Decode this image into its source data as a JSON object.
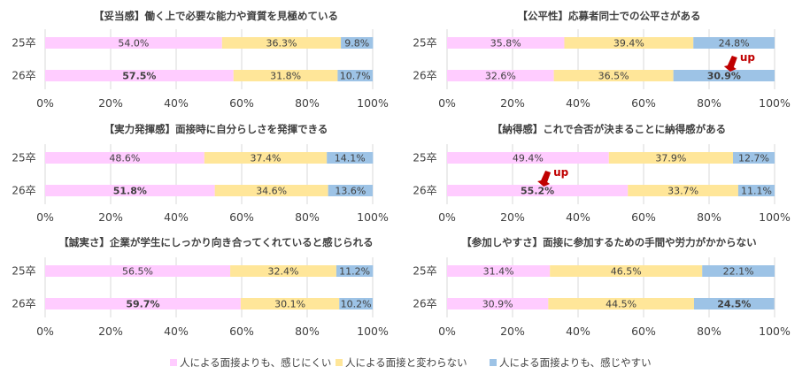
{
  "colors": {
    "less": "#ffccff",
    "same": "#ffe699",
    "more": "#9dc3e6",
    "highlight": "#c00000",
    "grid": "#d9d9d9"
  },
  "legend": [
    {
      "key": "less",
      "label": "人による面接よりも、感じにくい"
    },
    {
      "key": "same",
      "label": "人による面接と変わらない"
    },
    {
      "key": "more",
      "label": "人による面接よりも、感じやすい"
    }
  ],
  "chart_data": [
    {
      "type": "bar",
      "orientation": "horizontal-stacked",
      "title": "【妥当感】働く上で必要な能力や資質を見極めている",
      "categories": [
        "25卒",
        "26卒"
      ],
      "series": [
        {
          "name": "人による面接よりも、感じにくい",
          "values": [
            54.0,
            57.5
          ],
          "labels": [
            "54.0%",
            "57.5%"
          ]
        },
        {
          "name": "人による面接と変わらない",
          "values": [
            36.3,
            31.8
          ],
          "labels": [
            "36.3%",
            "31.8%"
          ]
        },
        {
          "name": "人による面接よりも、感じやすい",
          "values": [
            9.8,
            10.7
          ],
          "labels": [
            "9.8%",
            "10.7%"
          ]
        }
      ],
      "xlim": [
        0,
        100
      ],
      "xticks": [
        "0%",
        "20%",
        "40%",
        "60%",
        "80%",
        "100%"
      ],
      "emphasis": {
        "category": 1,
        "series": 0
      },
      "annotation": null
    },
    {
      "type": "bar",
      "orientation": "horizontal-stacked",
      "title": "【公平性】応募者同士での公平さがある",
      "categories": [
        "25卒",
        "26卒"
      ],
      "series": [
        {
          "name": "人による面接よりも、感じにくい",
          "values": [
            35.8,
            32.6
          ],
          "labels": [
            "35.8%",
            "32.6%"
          ]
        },
        {
          "name": "人による面接と変わらない",
          "values": [
            39.4,
            36.5
          ],
          "labels": [
            "39.4%",
            "36.5%"
          ]
        },
        {
          "name": "人による面接よりも、感じやすい",
          "values": [
            24.8,
            30.9
          ],
          "labels": [
            "24.8%",
            "30.9%"
          ]
        }
      ],
      "xlim": [
        0,
        100
      ],
      "xticks": [
        "0%",
        "20%",
        "40%",
        "60%",
        "80%",
        "100%"
      ],
      "emphasis": {
        "category": 1,
        "series": 2
      },
      "annotation": {
        "text": "up"
      }
    },
    {
      "type": "bar",
      "orientation": "horizontal-stacked",
      "title": "【実力発揮感】面接時に自分らしさを発揮できる",
      "categories": [
        "25卒",
        "26卒"
      ],
      "series": [
        {
          "name": "人による面接よりも、感じにくい",
          "values": [
            48.6,
            51.8
          ],
          "labels": [
            "48.6%",
            "51.8%"
          ]
        },
        {
          "name": "人による面接と変わらない",
          "values": [
            37.4,
            34.6
          ],
          "labels": [
            "37.4%",
            "34.6%"
          ]
        },
        {
          "name": "人による面接よりも、感じやすい",
          "values": [
            14.1,
            13.6
          ],
          "labels": [
            "14.1%",
            "13.6%"
          ]
        }
      ],
      "xlim": [
        0,
        100
      ],
      "xticks": [
        "0%",
        "20%",
        "40%",
        "60%",
        "80%",
        "100%"
      ],
      "emphasis": {
        "category": 1,
        "series": 0
      },
      "annotation": null
    },
    {
      "type": "bar",
      "orientation": "horizontal-stacked",
      "title": "【納得感】これで合否が決まることに納得感がある",
      "categories": [
        "25卒",
        "26卒"
      ],
      "series": [
        {
          "name": "人による面接よりも、感じにくい",
          "values": [
            49.4,
            55.2
          ],
          "labels": [
            "49.4%",
            "55.2%"
          ]
        },
        {
          "name": "人による面接と変わらない",
          "values": [
            37.9,
            33.7
          ],
          "labels": [
            "37.9%",
            "33.7%"
          ]
        },
        {
          "name": "人による面接よりも、感じやすい",
          "values": [
            12.7,
            11.1
          ],
          "labels": [
            "12.7%",
            "11.1%"
          ]
        }
      ],
      "xlim": [
        0,
        100
      ],
      "xticks": [
        "0%",
        "20%",
        "40%",
        "60%",
        "80%",
        "100%"
      ],
      "emphasis": {
        "category": 1,
        "series": 0
      },
      "annotation": {
        "text": "up"
      }
    },
    {
      "type": "bar",
      "orientation": "horizontal-stacked",
      "title": "【誠実さ】企業が学生にしっかり向き合ってくれていると感じられる",
      "categories": [
        "25卒",
        "26卒"
      ],
      "series": [
        {
          "name": "人による面接よりも、感じにくい",
          "values": [
            56.5,
            59.7
          ],
          "labels": [
            "56.5%",
            "59.7%"
          ]
        },
        {
          "name": "人による面接と変わらない",
          "values": [
            32.4,
            30.1
          ],
          "labels": [
            "32.4%",
            "30.1%"
          ]
        },
        {
          "name": "人による面接よりも、感じやすい",
          "values": [
            11.2,
            10.2
          ],
          "labels": [
            "11.2%",
            "10.2%"
          ]
        }
      ],
      "xlim": [
        0,
        100
      ],
      "xticks": [
        "0%",
        "20%",
        "40%",
        "60%",
        "80%",
        "100%"
      ],
      "emphasis": {
        "category": 1,
        "series": 0
      },
      "annotation": null
    },
    {
      "type": "bar",
      "orientation": "horizontal-stacked",
      "title": "【参加しやすさ】面接に参加するための手間や労力がかからない",
      "categories": [
        "25卒",
        "26卒"
      ],
      "series": [
        {
          "name": "人による面接よりも、感じにくい",
          "values": [
            31.4,
            30.9
          ],
          "labels": [
            "31.4%",
            "30.9%"
          ]
        },
        {
          "name": "人による面接と変わらない",
          "values": [
            46.5,
            44.5
          ],
          "labels": [
            "46.5%",
            "44.5%"
          ]
        },
        {
          "name": "人による面接よりも、感じやすい",
          "values": [
            22.1,
            24.5
          ],
          "labels": [
            "22.1%",
            "24.5%"
          ]
        }
      ],
      "xlim": [
        0,
        100
      ],
      "xticks": [
        "0%",
        "20%",
        "40%",
        "60%",
        "80%",
        "100%"
      ],
      "emphasis": {
        "category": 1,
        "series": 2
      },
      "annotation": null
    }
  ]
}
